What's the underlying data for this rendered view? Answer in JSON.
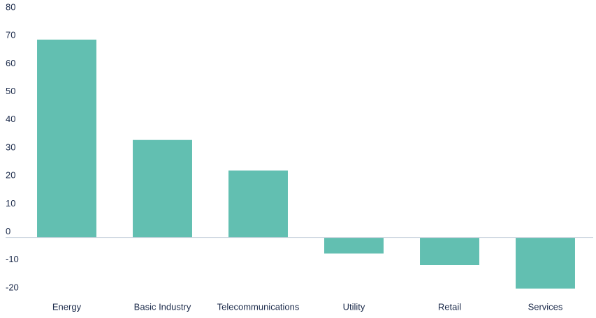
{
  "chart_data": {
    "type": "bar",
    "categories": [
      "Energy",
      "Basic Industry",
      "Telecommunications",
      "Utility",
      "Retail",
      "Services"
    ],
    "values": [
      70.6,
      34.8,
      23.9,
      -5.7,
      -9.8,
      -18.2
    ],
    "color": "#62bfb1",
    "ylim": [
      -20,
      80
    ],
    "yticks": [
      -20,
      -10,
      0,
      10,
      20,
      30,
      40,
      50,
      60,
      70,
      80
    ],
    "grid": false
  }
}
